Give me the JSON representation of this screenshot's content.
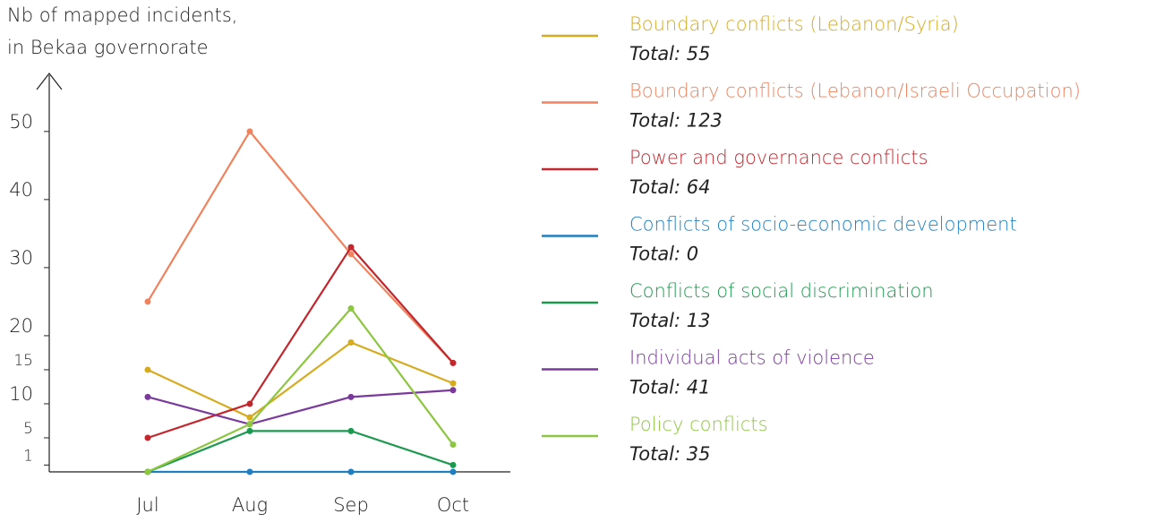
{
  "chart_data": {
    "type": "line",
    "ylabel": [
      "Nb of mapped incidents,",
      "in Bekaa governorate"
    ],
    "categories": [
      "Jul",
      "Aug",
      "Sep",
      "Oct"
    ],
    "ylim": [
      0,
      58
    ],
    "yticks": [
      1,
      5,
      10,
      15,
      20,
      30,
      40,
      50
    ],
    "series": [
      {
        "name": "Boundary conflicts (Lebanon/Syria)",
        "total_label": "Total: 55",
        "color": "#d6ab1e",
        "values": [
          15,
          8,
          19,
          13
        ]
      },
      {
        "name": "Boundary conflicts (Lebanon/Israeli Occupation)",
        "total_label": "Total: 123",
        "color": "#f0825e",
        "values": [
          25,
          50,
          32,
          16
        ]
      },
      {
        "name": "Power and governance conflicts",
        "total_label": "Total: 64",
        "color": "#c1272d",
        "values": [
          5,
          10,
          33,
          16
        ]
      },
      {
        "name": "Conflicts of socio-economic development",
        "total_label": "Total: 0",
        "color": "#1f7fc0",
        "values": [
          0,
          0,
          0,
          0
        ]
      },
      {
        "name": "Conflicts of social discrimination",
        "total_label": "Total: 13",
        "color": "#1b9a4f",
        "values": [
          0,
          6,
          6,
          1
        ]
      },
      {
        "name": "Individual acts of violence",
        "total_label": "Total: 41",
        "color": "#7a3a9c",
        "values": [
          11,
          7,
          11,
          12
        ]
      },
      {
        "name": "Policy conflicts",
        "total_label": "Total: 35",
        "color": "#8dc63f",
        "values": [
          0,
          7,
          24,
          4
        ]
      }
    ]
  }
}
